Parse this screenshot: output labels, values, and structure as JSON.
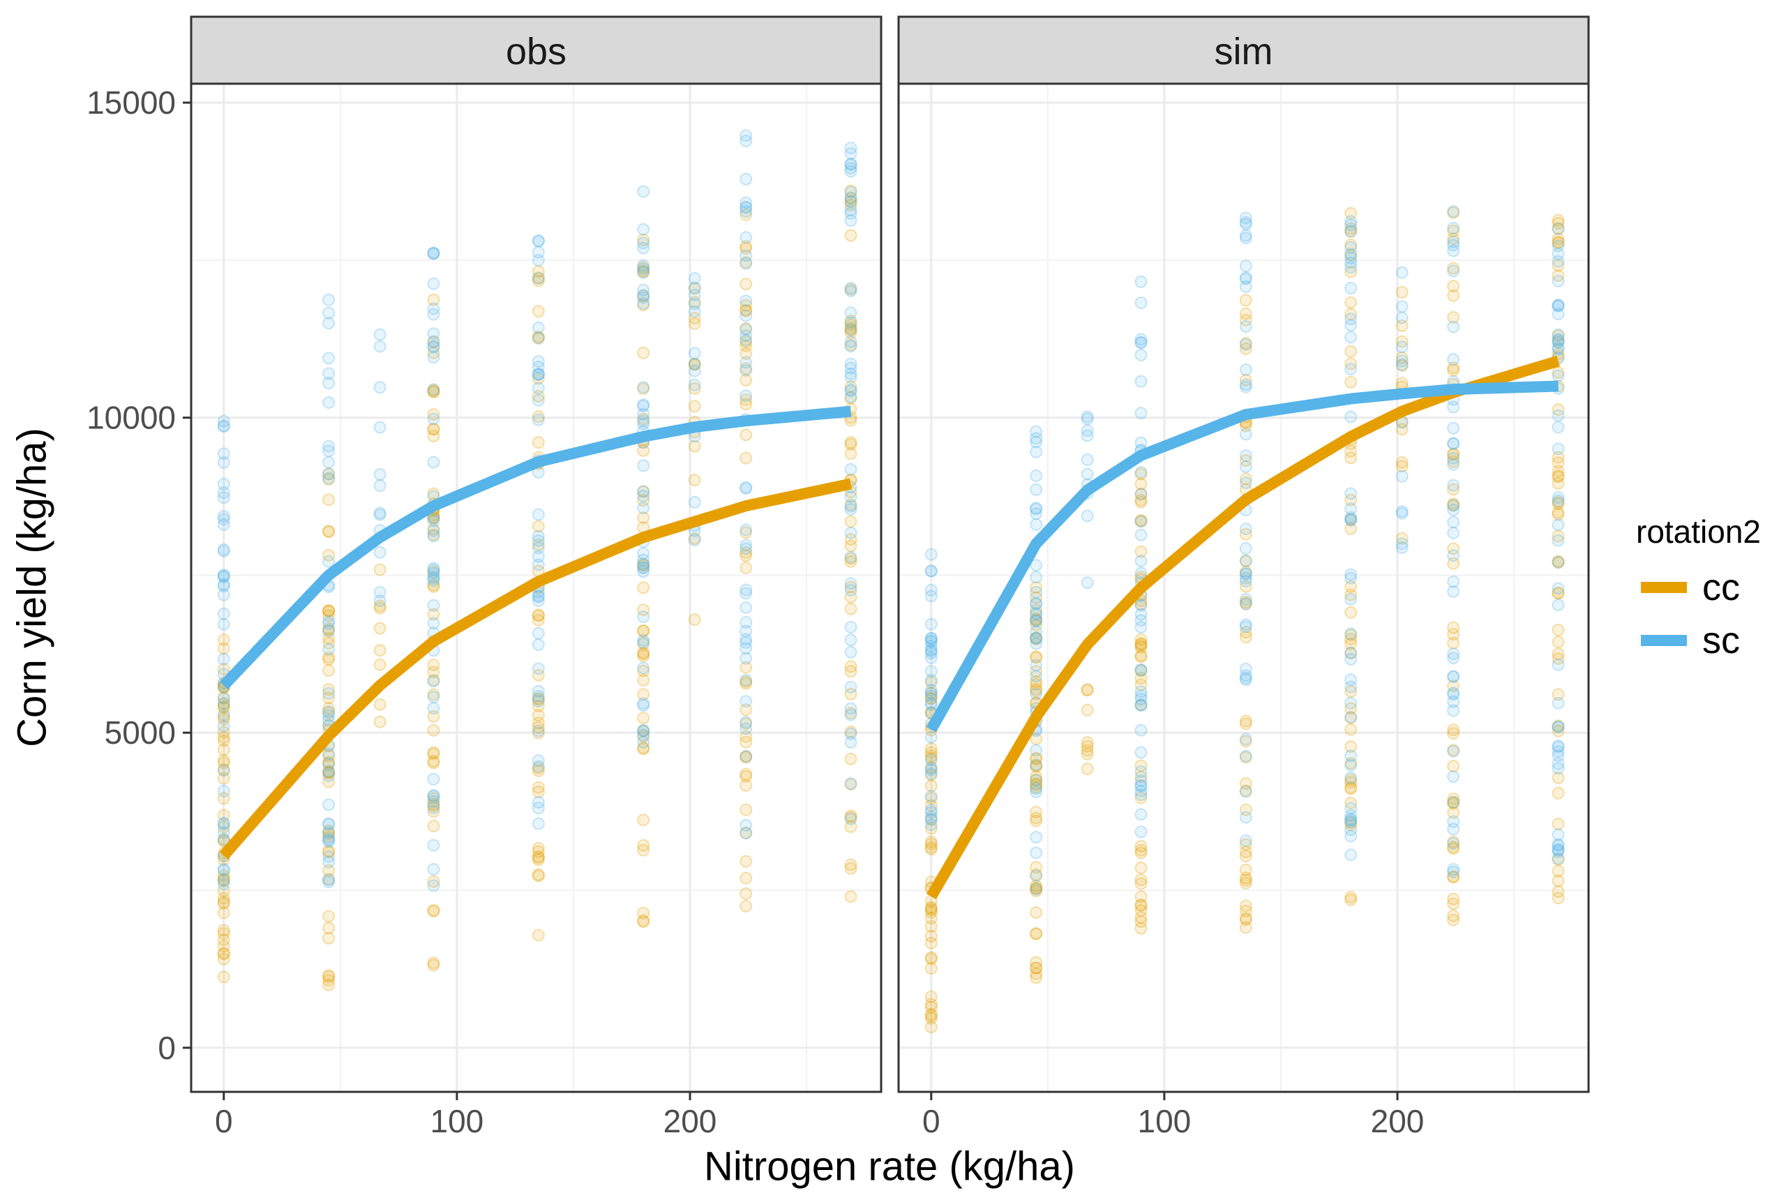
{
  "chart_data": {
    "type": "scatter",
    "xlabel": "Nitrogen rate (kg/ha)",
    "ylabel": "Corn yield (kg/ha)",
    "xlim": [
      -14,
      282
    ],
    "ylim": [
      -700,
      15300
    ],
    "x_ticks": [
      0,
      100,
      200
    ],
    "x_tick_labels": [
      "0",
      "100",
      "200"
    ],
    "y_ticks": [
      0,
      5000,
      10000,
      15000
    ],
    "y_tick_labels": [
      "0",
      "5000",
      "10000",
      "15000"
    ],
    "grid": true,
    "legend": {
      "title": "rotation2",
      "placement": "right",
      "entries": [
        {
          "label": "cc",
          "color": "#E69F00"
        },
        {
          "label": "sc",
          "color": "#56B4E9"
        }
      ]
    },
    "facets": [
      {
        "label": "obs",
        "series": [
          {
            "name": "cc",
            "color": "#E69F00",
            "line_x": [
              0,
              45,
              67,
              90,
              135,
              180,
              202,
              224,
              269
            ],
            "line_y": [
              3050,
              4950,
              5750,
              6450,
              7400,
              8100,
              8350,
              8600,
              8950
            ],
            "point_groups": [
              {
                "x": 0,
                "min": 450,
                "max": 6500,
                "n": 45
              },
              {
                "x": 45,
                "min": 950,
                "max": 9500,
                "n": 45
              },
              {
                "x": 67,
                "min": 4600,
                "max": 7600,
                "n": 8
              },
              {
                "x": 90,
                "min": 1250,
                "max": 11900,
                "n": 45
              },
              {
                "x": 135,
                "min": 1700,
                "max": 12500,
                "n": 40
              },
              {
                "x": 180,
                "min": 1650,
                "max": 13100,
                "n": 40
              },
              {
                "x": 202,
                "min": 6300,
                "max": 12100,
                "n": 14
              },
              {
                "x": 224,
                "min": 1950,
                "max": 13800,
                "n": 40
              },
              {
                "x": 269,
                "min": 2350,
                "max": 13700,
                "n": 45
              }
            ]
          },
          {
            "name": "sc",
            "color": "#56B4E9",
            "line_x": [
              0,
              45,
              67,
              90,
              135,
              180,
              202,
              224,
              269
            ],
            "line_y": [
              5750,
              7500,
              8100,
              8600,
              9300,
              9700,
              9850,
              9950,
              10100
            ],
            "point_groups": [
              {
                "x": 0,
                "min": 2400,
                "max": 10000,
                "n": 40
              },
              {
                "x": 45,
                "min": 2500,
                "max": 12500,
                "n": 40
              },
              {
                "x": 67,
                "min": 6800,
                "max": 11500,
                "n": 12
              },
              {
                "x": 90,
                "min": 2500,
                "max": 13000,
                "n": 40
              },
              {
                "x": 135,
                "min": 3500,
                "max": 13200,
                "n": 40
              },
              {
                "x": 180,
                "min": 4800,
                "max": 13800,
                "n": 40
              },
              {
                "x": 202,
                "min": 7500,
                "max": 12800,
                "n": 14
              },
              {
                "x": 224,
                "min": 3300,
                "max": 14500,
                "n": 40
              },
              {
                "x": 269,
                "min": 3500,
                "max": 14400,
                "n": 45
              }
            ]
          }
        ]
      },
      {
        "label": "sim",
        "series": [
          {
            "name": "cc",
            "color": "#E69F00",
            "line_x": [
              0,
              45,
              67,
              90,
              135,
              180,
              202,
              224,
              269
            ],
            "line_y": [
              2400,
              5250,
              6400,
              7300,
              8700,
              9700,
              10100,
              10400,
              10900
            ],
            "point_groups": [
              {
                "x": 0,
                "min": 0,
                "max": 6000,
                "n": 45
              },
              {
                "x": 45,
                "min": 1100,
                "max": 7500,
                "n": 45
              },
              {
                "x": 67,
                "min": 3900,
                "max": 6900,
                "n": 8
              },
              {
                "x": 90,
                "min": 1800,
                "max": 9600,
                "n": 40
              },
              {
                "x": 135,
                "min": 1900,
                "max": 12800,
                "n": 40
              },
              {
                "x": 180,
                "min": 1850,
                "max": 13500,
                "n": 40
              },
              {
                "x": 202,
                "min": 8000,
                "max": 12300,
                "n": 12
              },
              {
                "x": 224,
                "min": 1850,
                "max": 13300,
                "n": 40
              },
              {
                "x": 269,
                "min": 1850,
                "max": 13500,
                "n": 45
              }
            ]
          },
          {
            "name": "sc",
            "color": "#56B4E9",
            "line_x": [
              0,
              45,
              67,
              90,
              135,
              180,
              202,
              224,
              269
            ],
            "line_y": [
              5050,
              8000,
              8850,
              9400,
              10050,
              10300,
              10380,
              10450,
              10500
            ],
            "point_groups": [
              {
                "x": 0,
                "min": 3500,
                "max": 7950,
                "n": 35
              },
              {
                "x": 45,
                "min": 2500,
                "max": 10200,
                "n": 40
              },
              {
                "x": 67,
                "min": 7000,
                "max": 10300,
                "n": 10
              },
              {
                "x": 90,
                "min": 3400,
                "max": 12500,
                "n": 40
              },
              {
                "x": 135,
                "min": 2750,
                "max": 13500,
                "n": 40
              },
              {
                "x": 180,
                "min": 2750,
                "max": 13500,
                "n": 40
              },
              {
                "x": 202,
                "min": 7900,
                "max": 12700,
                "n": 12
              },
              {
                "x": 224,
                "min": 2750,
                "max": 13600,
                "n": 40
              },
              {
                "x": 269,
                "min": 2750,
                "max": 13600,
                "n": 45
              }
            ]
          }
        ]
      }
    ]
  }
}
